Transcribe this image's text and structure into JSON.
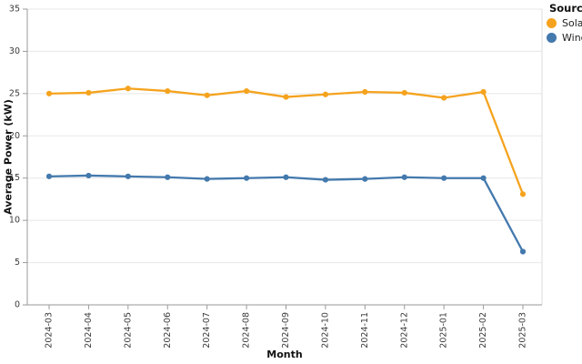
{
  "chart_data": {
    "type": "line",
    "title": "",
    "xlabel": "Month",
    "ylabel": "Average Power (kW)",
    "x": [
      "2024-03",
      "2024-04",
      "2024-05",
      "2024-06",
      "2024-07",
      "2024-08",
      "2024-09",
      "2024-10",
      "2024-11",
      "2024-12",
      "2025-01",
      "2025-02",
      "2025-03"
    ],
    "series": [
      {
        "name": "Solar",
        "color": "#F5A31E",
        "values": [
          25.0,
          25.1,
          25.6,
          25.3,
          24.8,
          25.3,
          24.6,
          24.9,
          25.2,
          25.1,
          24.5,
          25.2,
          13.1
        ]
      },
      {
        "name": "Wind",
        "color": "#4379AD",
        "values": [
          15.2,
          15.3,
          15.2,
          15.1,
          14.9,
          15.0,
          15.1,
          14.8,
          14.9,
          15.1,
          15.0,
          15.0,
          6.3
        ]
      }
    ],
    "ylim": [
      0,
      35
    ],
    "ytick_step": 5,
    "yticks": [
      0,
      5,
      10,
      15,
      20,
      25,
      30,
      35
    ],
    "grid": "horizontal",
    "legend_position": "right-outside"
  },
  "legend": {
    "title": "Source"
  },
  "colors": {
    "background": "#FFFFFF",
    "grid": "#E7E7E7",
    "border": "#DCDCDC",
    "axis": "#9A9A9A",
    "tick_text": "#3A3A3A",
    "label_text": "#111111"
  }
}
